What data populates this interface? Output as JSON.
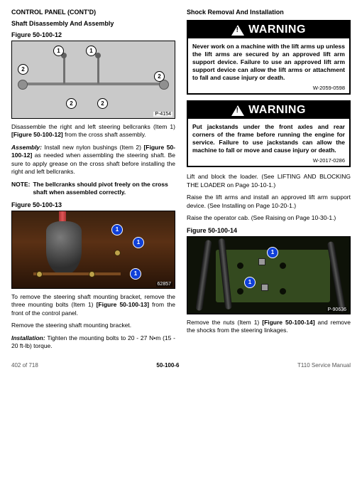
{
  "left": {
    "header": "CONTROL PANEL (CONT'D)",
    "sub1": "Shaft Disassembly And Assembly",
    "fig12_label": "Figure 50-100-12",
    "fig12_tag": "P-4154",
    "p1": "Disassemble the right and left steering bellcranks (Item 1) [Figure 50-100-12] from the cross shaft assembly.",
    "assembly_label": "Assembly:",
    "p2": " Install new nylon bushings (Item 2) [Figure 50-100-12] as needed when assembling the steering shaft. Be sure to apply grease on the cross shaft before installing the right and left bellcranks.",
    "note_label": "NOTE:",
    "note_body": "The bellcranks should pivot freely on the cross shaft when assembled correctly.",
    "fig13_label": "Figure 50-100-13",
    "fig13_tag": "62857",
    "p3": "To remove the steering shaft mounting bracket, remove the three mounting bolts (Item 1) [Figure 50-100-13] from the front of the control panel.",
    "p4": "Remove the steering shaft mounting bracket.",
    "install_label": "Installation:",
    "p5": " Tighten the mounting bolts to 20 - 27 N•m (15 - 20 ft-lb) torque."
  },
  "right": {
    "header": "Shock Removal And Installation",
    "warn1_title": "WARNING",
    "warn1_body": "Never work on a machine with the lift arms up unless the lift arms are secured by an approved lift arm support device. Failure to use an approved lift arm support device can allow the lift arms or attachment to fall and cause injury or death.",
    "warn1_code": "W-2059-0598",
    "warn2_title": "WARNING",
    "warn2_body": "Put jackstands under the front axles and rear corners of the frame before running the engine for service. Failure to use jackstands can allow the machine to fall or move and cause injury or death.",
    "warn2_code": "W-2017-0286",
    "p1": "Lift and block the loader. (See LIFTING AND BLOCKING THE LOADER on Page 10-10-1.)",
    "p2": "Raise the lift arms and install an approved lift arm support device. (See Installing on Page 10-20-1.)",
    "p3": "Raise the operator cab. (See Raising on Page 10-30-1.)",
    "fig14_label": "Figure 50-100-14",
    "fig14_tag": "P-90636",
    "p4": "Remove the nuts (Item 1) [Figure 50-100-14] and remove the shocks from the steering linkages."
  },
  "footer": {
    "left": "402 of 718",
    "mid": "50-100-6",
    "right": "T110 Service Manual"
  },
  "callouts": {
    "one": "1",
    "two": "2"
  }
}
